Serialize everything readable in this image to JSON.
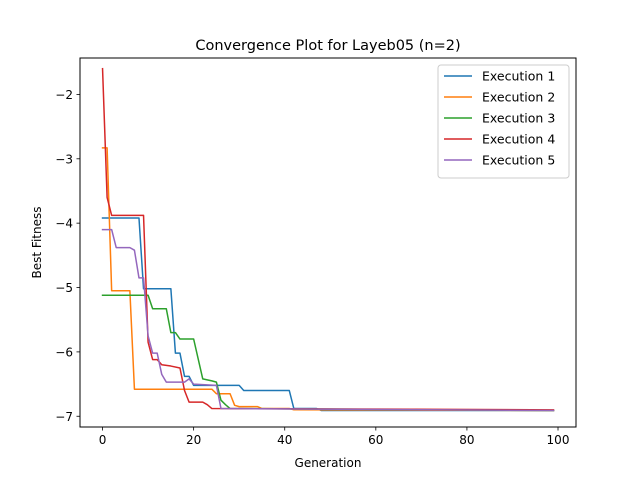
{
  "chart_data": {
    "type": "line",
    "title": "Convergence Plot for Layeb05 (n=2)",
    "xlabel": "Generation",
    "ylabel": "Best Fitness",
    "xlim": [
      -4.95,
      103.95
    ],
    "ylim": [
      -7.167,
      -1.434
    ],
    "xticks": [
      0,
      20,
      40,
      60,
      80,
      100
    ],
    "yticks": [
      -7,
      -6,
      -5,
      -4,
      -3,
      -2
    ],
    "xtick_labels": [
      "0",
      "20",
      "40",
      "60",
      "80",
      "100"
    ],
    "ytick_labels": [
      "−7",
      "−6",
      "−5",
      "−4",
      "−3",
      "−2"
    ],
    "grid": false,
    "legend_position": "top-right",
    "series": [
      {
        "name": "Execution 1",
        "color": "#1f77b4",
        "points": [
          [
            0,
            -3.92
          ],
          [
            8,
            -3.92
          ],
          [
            9,
            -5.02
          ],
          [
            15,
            -5.02
          ],
          [
            16,
            -6.02
          ],
          [
            17,
            -6.02
          ],
          [
            18,
            -6.38
          ],
          [
            19,
            -6.38
          ],
          [
            20,
            -6.52
          ],
          [
            30,
            -6.52
          ],
          [
            31,
            -6.6
          ],
          [
            41,
            -6.6
          ],
          [
            42,
            -6.88
          ],
          [
            47,
            -6.88
          ],
          [
            48,
            -6.91
          ],
          [
            99,
            -6.91
          ]
        ]
      },
      {
        "name": "Execution 2",
        "color": "#ff7f0e",
        "points": [
          [
            0,
            -2.83
          ],
          [
            1,
            -2.83
          ],
          [
            2,
            -5.05
          ],
          [
            6,
            -5.05
          ],
          [
            7,
            -6.58
          ],
          [
            24,
            -6.58
          ],
          [
            25,
            -6.65
          ],
          [
            28,
            -6.65
          ],
          [
            29,
            -6.83
          ],
          [
            30,
            -6.85
          ],
          [
            34,
            -6.85
          ],
          [
            35,
            -6.88
          ],
          [
            41,
            -6.88
          ],
          [
            42,
            -6.9
          ],
          [
            99,
            -6.91
          ]
        ]
      },
      {
        "name": "Execution 3",
        "color": "#2ca02c",
        "points": [
          [
            0,
            -5.12
          ],
          [
            10,
            -5.12
          ],
          [
            11,
            -5.33
          ],
          [
            14,
            -5.33
          ],
          [
            15,
            -5.7
          ],
          [
            16,
            -5.7
          ],
          [
            17,
            -5.8
          ],
          [
            20,
            -5.8
          ],
          [
            22,
            -6.42
          ],
          [
            24,
            -6.45
          ],
          [
            25,
            -6.47
          ],
          [
            26,
            -6.75
          ],
          [
            27,
            -6.82
          ],
          [
            28,
            -6.88
          ],
          [
            99,
            -6.91
          ]
        ]
      },
      {
        "name": "Execution 4",
        "color": "#d62728",
        "points": [
          [
            0,
            -1.6
          ],
          [
            1,
            -3.6
          ],
          [
            2,
            -3.88
          ],
          [
            9,
            -3.88
          ],
          [
            10,
            -5.85
          ],
          [
            11,
            -6.12
          ],
          [
            12,
            -6.12
          ],
          [
            13,
            -6.2
          ],
          [
            15,
            -6.22
          ],
          [
            17,
            -6.25
          ],
          [
            18,
            -6.6
          ],
          [
            19,
            -6.78
          ],
          [
            22,
            -6.78
          ],
          [
            23,
            -6.82
          ],
          [
            24,
            -6.88
          ],
          [
            99,
            -6.9
          ]
        ]
      },
      {
        "name": "Execution 5",
        "color": "#9467bd",
        "points": [
          [
            0,
            -4.1
          ],
          [
            2,
            -4.1
          ],
          [
            3,
            -4.38
          ],
          [
            6,
            -4.38
          ],
          [
            7,
            -4.42
          ],
          [
            8,
            -4.85
          ],
          [
            9,
            -4.85
          ],
          [
            10,
            -5.75
          ],
          [
            11,
            -6.02
          ],
          [
            12,
            -6.02
          ],
          [
            13,
            -6.35
          ],
          [
            14,
            -6.47
          ],
          [
            18,
            -6.47
          ],
          [
            19,
            -6.42
          ],
          [
            20,
            -6.5
          ],
          [
            25,
            -6.52
          ],
          [
            26,
            -6.88
          ],
          [
            99,
            -6.91
          ]
        ]
      }
    ]
  }
}
